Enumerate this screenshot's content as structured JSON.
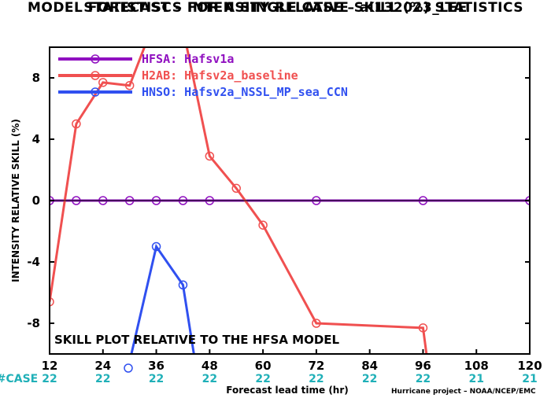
{
  "title_line1": "MODEL FORECAST – INTENSITY RELATIVE SKILL (%) STATISTICS",
  "title_line2": "STATISTISCS FOR A SINGLE CASE – al132023_LEE",
  "annotation": "SKILL PLOT RELATIVE TO THE HFSA MODEL",
  "credit": "Hurricane project – NOAA/NCEP/EMC",
  "case_label": "#CASE",
  "colors": {
    "case": "#20b0b8",
    "axis": "#000000"
  },
  "chart_data": {
    "type": "line",
    "xlabel": "Forecast lead time (hr)",
    "ylabel": "INTENSITY RELATIVE SKILL (%)",
    "xlim": [
      12,
      120
    ],
    "ylim": [
      -10,
      10
    ],
    "x_ticks": [
      12,
      24,
      36,
      48,
      60,
      72,
      84,
      96,
      108,
      120
    ],
    "y_ticks": [
      -8,
      -4,
      0,
      4,
      8
    ],
    "y_tick_labels": [
      "-8",
      "-4",
      "0",
      "4",
      "8"
    ],
    "case_counts": [
      "22",
      "22",
      "22",
      "22",
      "22",
      "22",
      "22",
      "22",
      "21",
      "21"
    ],
    "legend_position": "top-left",
    "series": [
      {
        "name": "HFSA: Hafsv1a",
        "color": "#9010c0",
        "markers": true,
        "x": [
          12,
          18,
          24,
          30,
          36,
          42,
          48,
          72,
          96,
          120
        ],
        "y": [
          0,
          0,
          0,
          0,
          0,
          0,
          0,
          0,
          0,
          0
        ]
      },
      {
        "name": "H2AB: Hafsv2a_baseline",
        "color": "#f05050",
        "markers": true,
        "x": [
          12,
          18,
          24,
          30,
          36,
          42,
          48,
          54,
          60,
          72,
          96,
          97,
          120
        ],
        "y": [
          -6.6,
          5.0,
          7.7,
          7.5,
          12.0,
          11.2,
          2.9,
          0.8,
          -1.6,
          -8.0,
          -8.3,
          -10.5,
          null
        ]
      },
      {
        "name": "HNSO: Hafsv2a_NSSL_MP_sea_CCN",
        "color": "#3050f0",
        "markers": true,
        "x": [
          30,
          36,
          42,
          45
        ],
        "y": [
          -10.5,
          -3.0,
          -5.5,
          -11.0
        ]
      }
    ]
  }
}
